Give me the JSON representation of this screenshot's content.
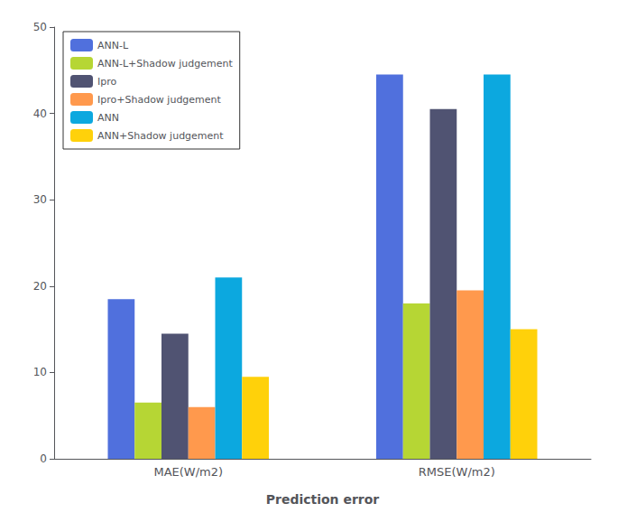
{
  "chart_data": {
    "type": "bar",
    "xlabel": "Prediction error",
    "categories": [
      "MAE(W/m2)",
      "RMSE(W/m2)"
    ],
    "series": [
      {
        "name": "ANN-L",
        "values": [
          18.5,
          44.5
        ]
      },
      {
        "name": "ANN-L+Shadow judgement",
        "values": [
          6.5,
          18.0
        ]
      },
      {
        "name": "Ipro",
        "values": [
          14.5,
          40.5
        ]
      },
      {
        "name": "Ipro+Shadow judgement",
        "values": [
          6.0,
          19.5
        ]
      },
      {
        "name": "ANN",
        "values": [
          21.0,
          44.5
        ]
      },
      {
        "name": "ANN+Shadow judgement",
        "values": [
          9.5,
          15.0
        ]
      }
    ],
    "ylim": [
      0,
      50
    ],
    "yticks": [
      0,
      10,
      20,
      30,
      40,
      50
    ],
    "grid": false,
    "legend": "upper left"
  }
}
